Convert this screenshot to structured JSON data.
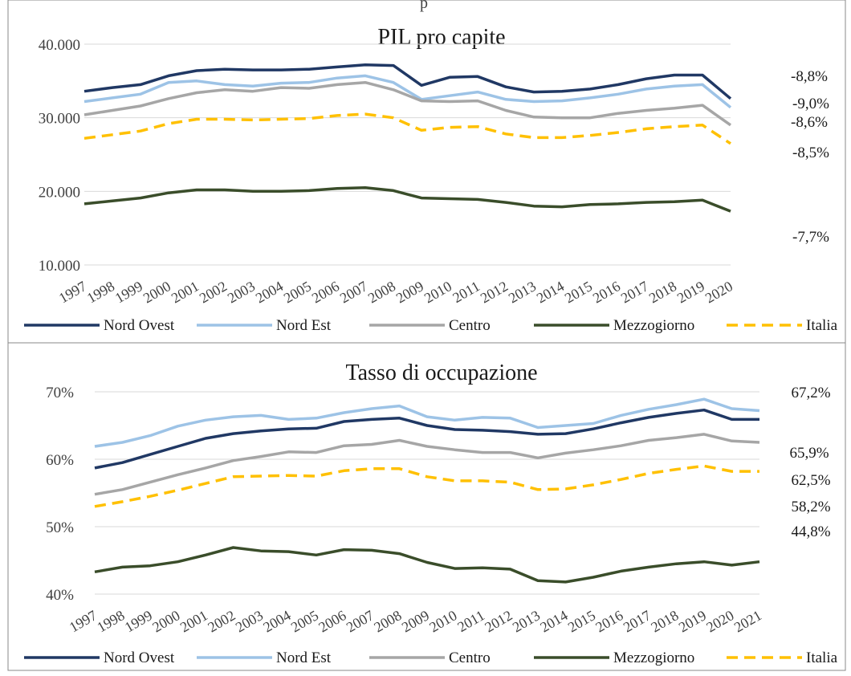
{
  "header_fragment": "p",
  "colors": {
    "Nord Ovest": "#203864",
    "Nord Est": "#9dc3e6",
    "Centro": "#a6a6a6",
    "Mezzogiorno": "#3a4d2a",
    "Italia": "#ffc000",
    "grid": "#d9d9d9",
    "axis_text": "#404040",
    "title_text": "#1a1a1a",
    "frame": "#888888"
  },
  "chart_data": [
    {
      "type": "line",
      "title": "PIL pro capite",
      "x": [
        "1997",
        "1998",
        "1999",
        "2000",
        "2001",
        "2002",
        "2003",
        "2004",
        "2005",
        "2006",
        "2007",
        "2008",
        "2009",
        "2010",
        "2011",
        "2012",
        "2013",
        "2014",
        "2015",
        "2016",
        "2017",
        "2018",
        "2019",
        "2020"
      ],
      "y_ticks": [
        "10.000",
        "20.000",
        "30.000",
        "40.000"
      ],
      "ylim": [
        10000,
        40000
      ],
      "grid": true,
      "legend_position": "bottom",
      "series": [
        {
          "name": "Nord Ovest",
          "style": "solid",
          "values": [
            33600,
            34100,
            34500,
            35700,
            36400,
            36600,
            36500,
            36500,
            36600,
            36900,
            37200,
            37100,
            34400,
            35500,
            35600,
            34200,
            33500,
            33600,
            33900,
            34500,
            35300,
            35800,
            35800,
            32600
          ],
          "end_label": "-8,8%"
        },
        {
          "name": "Nord Est",
          "style": "solid",
          "values": [
            32200,
            32700,
            33200,
            34800,
            35000,
            34500,
            34300,
            34700,
            34800,
            35400,
            35700,
            34800,
            32500,
            33000,
            33500,
            32500,
            32200,
            32300,
            32700,
            33200,
            33900,
            34300,
            34500,
            31400
          ],
          "end_label": "-9,0%"
        },
        {
          "name": "Centro",
          "style": "solid",
          "values": [
            30400,
            31000,
            31600,
            32600,
            33400,
            33800,
            33600,
            34100,
            34000,
            34500,
            34800,
            33800,
            32300,
            32200,
            32300,
            31000,
            30100,
            30000,
            30000,
            30600,
            31000,
            31300,
            31700,
            29000
          ],
          "end_label": "-8,6%"
        },
        {
          "name": "Mezzogiorno",
          "style": "solid",
          "values": [
            18300,
            18700,
            19100,
            19800,
            20200,
            20200,
            20000,
            20000,
            20100,
            20400,
            20500,
            20100,
            19100,
            19000,
            18900,
            18500,
            18000,
            17900,
            18200,
            18300,
            18500,
            18600,
            18800,
            17300
          ],
          "end_label": "-7,7%"
        },
        {
          "name": "Italia",
          "style": "dashed",
          "values": [
            27200,
            27700,
            28200,
            29200,
            29800,
            29800,
            29700,
            29800,
            29900,
            30300,
            30500,
            30000,
            28300,
            28700,
            28800,
            27800,
            27300,
            27300,
            27600,
            28000,
            28500,
            28800,
            29000,
            26500
          ],
          "end_label": "-8,5%"
        }
      ]
    },
    {
      "type": "line",
      "title": "Tasso di occupazione",
      "x": [
        "1997",
        "1998",
        "1999",
        "2000",
        "2001",
        "2002",
        "2003",
        "2004",
        "2005",
        "2006",
        "2007",
        "2008",
        "2009",
        "2010",
        "2011",
        "2012",
        "2013",
        "2014",
        "2015",
        "2016",
        "2017",
        "2018",
        "2019",
        "2020",
        "2021"
      ],
      "y_ticks": [
        "40%",
        "50%",
        "60%",
        "70%"
      ],
      "ylim": [
        40,
        70
      ],
      "grid": true,
      "legend_position": "bottom",
      "series": [
        {
          "name": "Nord Ovest",
          "style": "solid",
          "values": [
            58.7,
            59.5,
            60.7,
            61.9,
            63.1,
            63.8,
            64.2,
            64.5,
            64.6,
            65.6,
            65.9,
            66.1,
            65.0,
            64.4,
            64.3,
            64.1,
            63.7,
            63.8,
            64.5,
            65.4,
            66.2,
            66.8,
            67.3,
            65.9,
            65.9
          ],
          "end_label": "65,9%"
        },
        {
          "name": "Nord Est",
          "style": "solid",
          "values": [
            61.9,
            62.5,
            63.5,
            64.9,
            65.8,
            66.3,
            66.5,
            65.9,
            66.1,
            66.9,
            67.5,
            67.9,
            66.3,
            65.8,
            66.2,
            66.1,
            64.7,
            65.0,
            65.3,
            66.5,
            67.4,
            68.1,
            68.9,
            67.5,
            67.2
          ],
          "end_label": "67,2%"
        },
        {
          "name": "Centro",
          "style": "solid",
          "values": [
            54.8,
            55.5,
            56.6,
            57.7,
            58.7,
            59.8,
            60.4,
            61.1,
            61.0,
            62.0,
            62.2,
            62.8,
            61.9,
            61.4,
            61.0,
            61.0,
            60.2,
            60.9,
            61.4,
            62.0,
            62.8,
            63.2,
            63.7,
            62.7,
            62.5
          ],
          "end_label": "62,5%"
        },
        {
          "name": "Mezzogiorno",
          "style": "solid",
          "values": [
            43.3,
            44.0,
            44.2,
            44.8,
            45.8,
            46.9,
            46.4,
            46.3,
            45.8,
            46.6,
            46.5,
            46.0,
            44.7,
            43.8,
            43.9,
            43.7,
            42.0,
            41.8,
            42.5,
            43.4,
            44.0,
            44.5,
            44.8,
            44.3,
            44.8
          ],
          "end_label": "44,8%"
        },
        {
          "name": "Italia",
          "style": "dashed",
          "values": [
            53.0,
            53.7,
            54.5,
            55.4,
            56.4,
            57.4,
            57.5,
            57.6,
            57.5,
            58.3,
            58.6,
            58.6,
            57.4,
            56.8,
            56.8,
            56.6,
            55.5,
            55.6,
            56.2,
            57.0,
            57.9,
            58.5,
            59.0,
            58.2,
            58.2
          ],
          "end_label": "58,2%"
        }
      ]
    }
  ]
}
